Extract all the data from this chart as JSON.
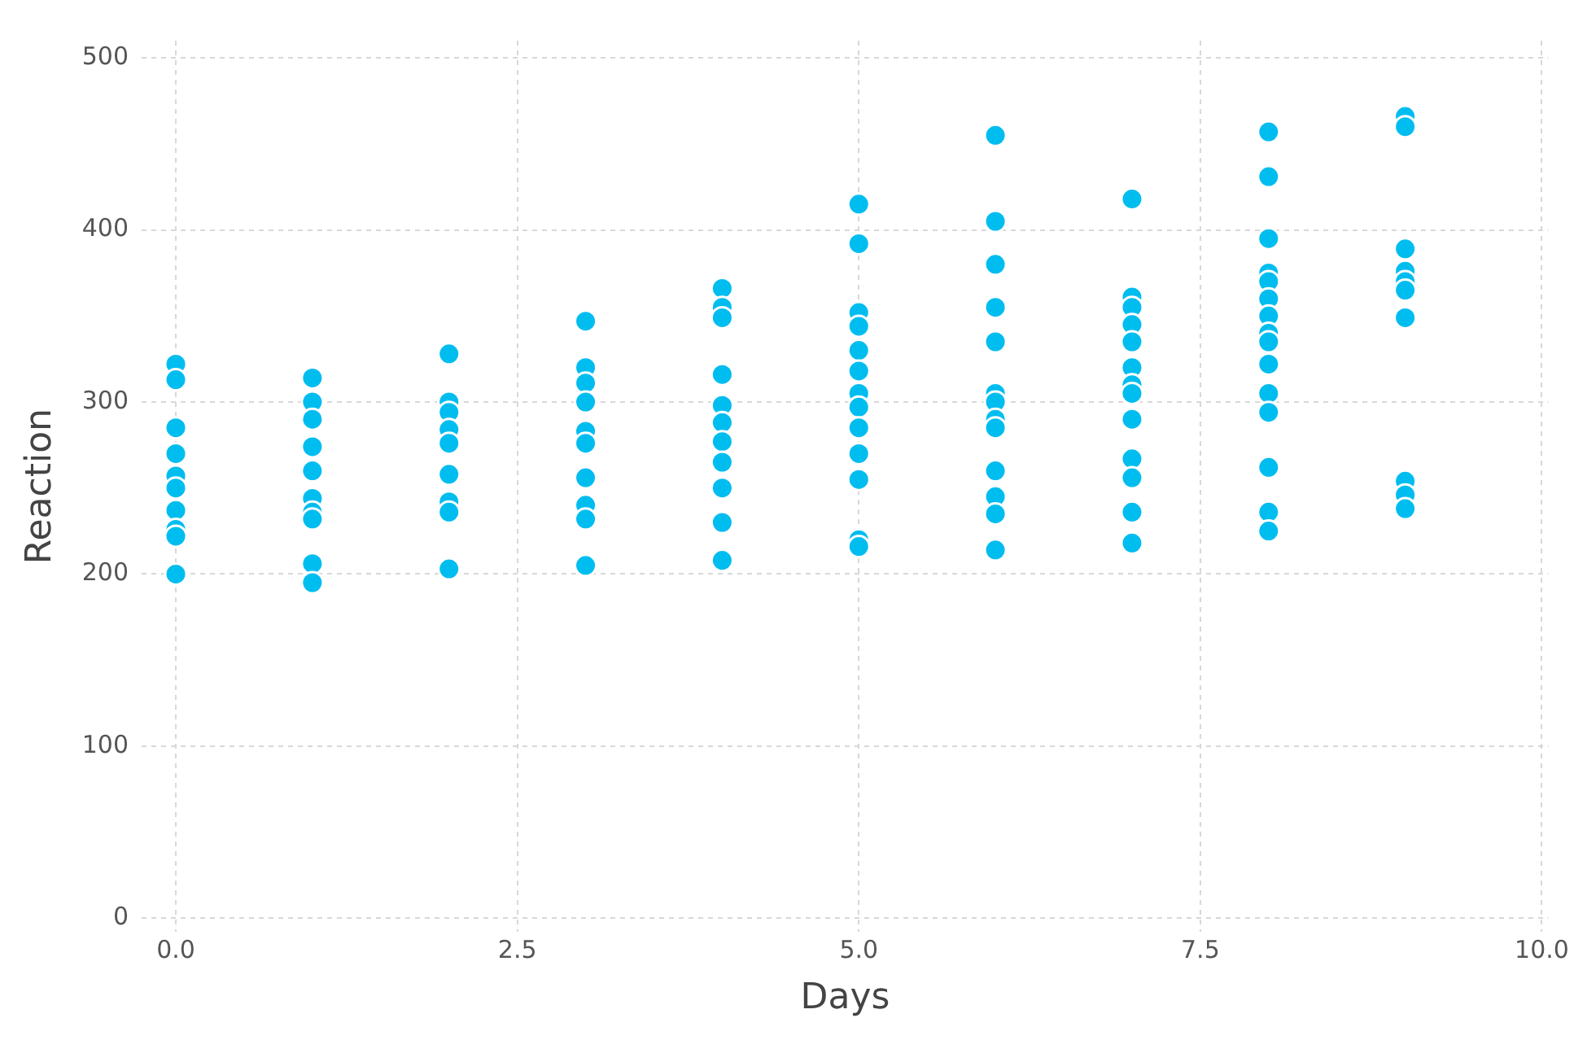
{
  "chart_data": {
    "type": "scatter",
    "xlabel": "Days",
    "ylabel": "Reaction",
    "x": [
      0,
      0,
      0,
      0,
      0,
      0,
      0,
      0,
      0,
      0,
      1,
      1,
      1,
      1,
      1,
      1,
      1,
      1,
      1,
      1,
      2,
      2,
      2,
      2,
      2,
      2,
      2,
      2,
      2,
      3,
      3,
      3,
      3,
      3,
      3,
      3,
      3,
      3,
      3,
      4,
      4,
      4,
      4,
      4,
      4,
      4,
      4,
      4,
      4,
      4,
      5,
      5,
      5,
      5,
      5,
      5,
      5,
      5,
      5,
      5,
      5,
      5,
      5,
      6,
      6,
      6,
      6,
      6,
      6,
      6,
      6,
      6,
      6,
      6,
      6,
      6,
      7,
      7,
      7,
      7,
      7,
      7,
      7,
      7,
      7,
      7,
      7,
      7,
      7,
      8,
      8,
      8,
      8,
      8,
      8,
      8,
      8,
      8,
      8,
      8,
      8,
      8,
      8,
      8,
      9,
      9,
      9,
      9,
      9,
      9,
      9,
      9,
      9,
      9
    ],
    "series": [
      {
        "color": "#00bdf0",
        "values": [
          322,
          313,
          285,
          270,
          257,
          250,
          237,
          226,
          222,
          200,
          314,
          300,
          290,
          274,
          260,
          244,
          236,
          232,
          206,
          195,
          328,
          300,
          294,
          284,
          276,
          258,
          242,
          236,
          203,
          347,
          320,
          311,
          300,
          283,
          276,
          256,
          240,
          232,
          205,
          366,
          355,
          349,
          316,
          298,
          288,
          277,
          265,
          250,
          230,
          208,
          415,
          392,
          352,
          344,
          330,
          318,
          305,
          297,
          285,
          270,
          255,
          220,
          216,
          455,
          405,
          380,
          355,
          335,
          305,
          300,
          290,
          285,
          260,
          245,
          235,
          214,
          418,
          361,
          355,
          345,
          335,
          320,
          310,
          305,
          290,
          267,
          256,
          236,
          218,
          457,
          431,
          395,
          375,
          370,
          360,
          350,
          340,
          335,
          322,
          305,
          294,
          262,
          236,
          225,
          466,
          460,
          389,
          376,
          370,
          365,
          349,
          254,
          246,
          238
        ]
      }
    ],
    "xlim": [
      -0.25,
      10.05
    ],
    "ylim": [
      -8,
      510
    ],
    "xticks": [
      {
        "value": 0,
        "label": "0.0"
      },
      {
        "value": 2.5,
        "label": "2.5"
      },
      {
        "value": 5,
        "label": "5.0"
      },
      {
        "value": 7.5,
        "label": "7.5"
      },
      {
        "value": 10,
        "label": "10.0"
      }
    ],
    "yticks": [
      0,
      100,
      200,
      300,
      400,
      500
    ],
    "grid": true,
    "marker": "circle",
    "legend": false
  }
}
